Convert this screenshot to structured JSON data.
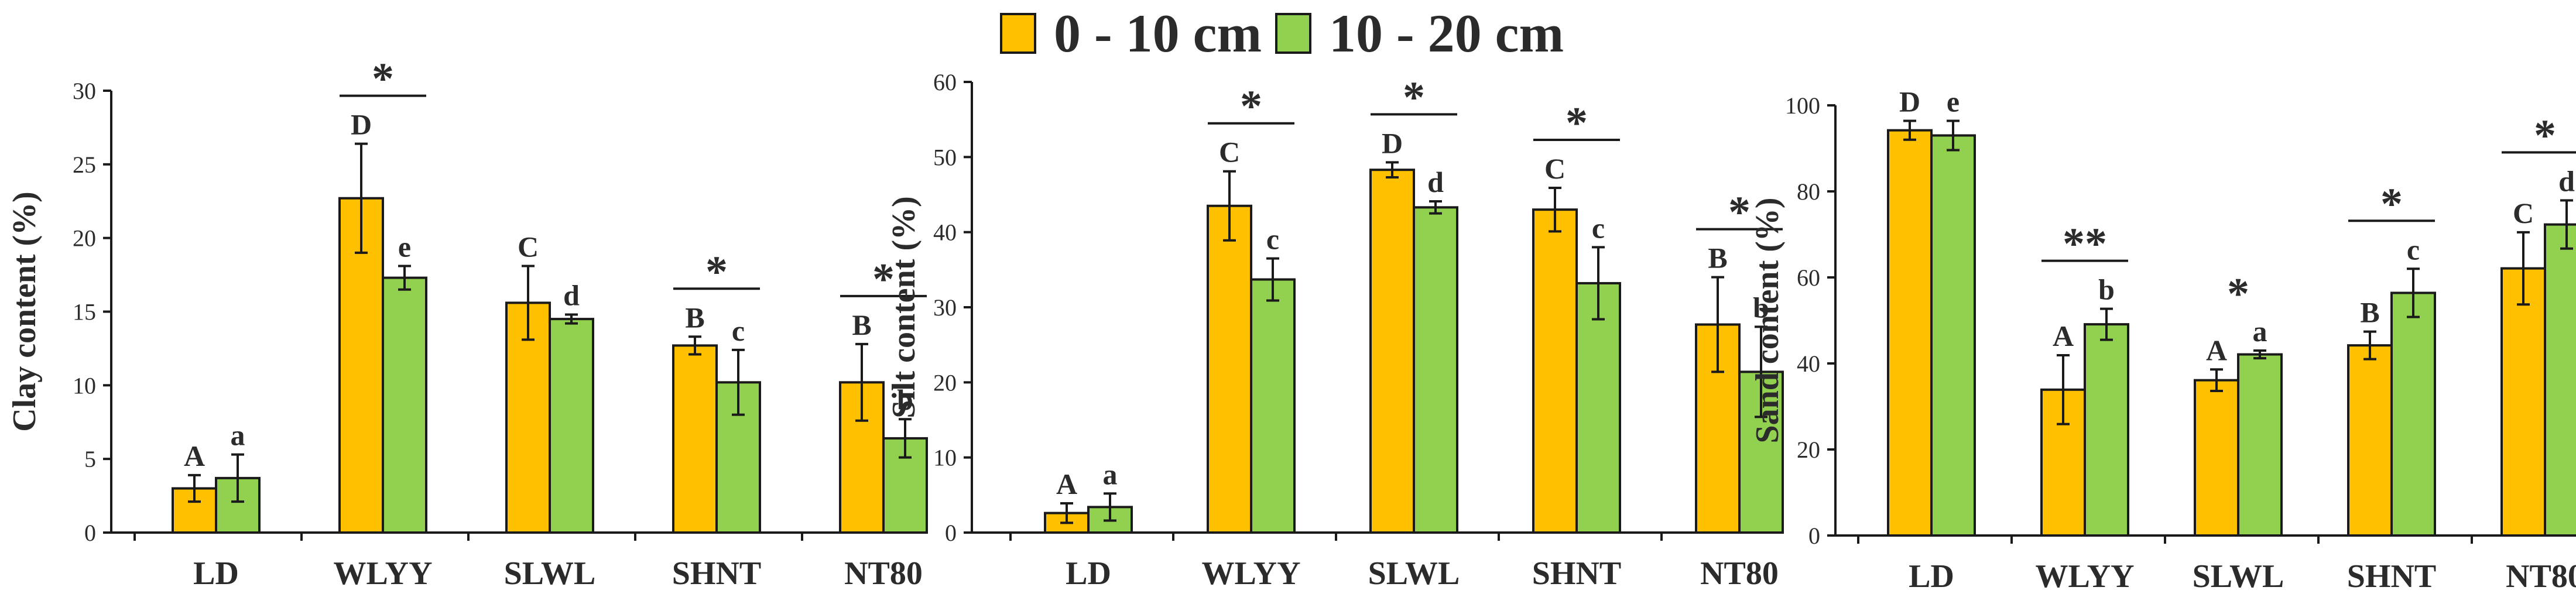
{
  "legend": {
    "series": [
      {
        "name": "0 - 10 cm",
        "color": "#FFC000"
      },
      {
        "name": "10 - 20 cm",
        "color": "#92D050"
      }
    ]
  },
  "chart_data": [
    {
      "type": "bar",
      "ylabel": "Clay content (%)",
      "ylim": [
        0,
        30
      ],
      "yticks": [
        0,
        5,
        10,
        15,
        20,
        25,
        30
      ],
      "categories": [
        "LD",
        "WLYY",
        "SLWL",
        "SHNT",
        "NT80"
      ],
      "series": [
        {
          "name": "0 - 10 cm",
          "values": [
            3.0,
            22.7,
            15.6,
            12.7,
            10.2
          ],
          "errors": [
            0.9,
            3.7,
            2.5,
            0.6,
            2.6
          ],
          "letters": [
            "A",
            "D",
            "C",
            "B",
            "B"
          ]
        },
        {
          "name": "10 - 20 cm",
          "values": [
            3.7,
            17.3,
            14.5,
            10.2,
            6.4
          ],
          "errors": [
            1.6,
            0.8,
            0.3,
            2.2,
            1.3
          ],
          "letters": [
            "a",
            "e",
            "d",
            "c",
            "b"
          ]
        }
      ],
      "significance": [
        "",
        "*",
        "",
        "*",
        "*"
      ]
    },
    {
      "type": "bar",
      "ylabel": "Silt content (%)",
      "ylim": [
        0,
        60
      ],
      "yticks": [
        0,
        10,
        20,
        30,
        40,
        50,
        60
      ],
      "categories": [
        "LD",
        "WLYY",
        "SLWL",
        "SHNT",
        "NT80"
      ],
      "series": [
        {
          "name": "0 - 10 cm",
          "values": [
            2.6,
            43.5,
            48.3,
            43.0,
            27.7
          ],
          "errors": [
            1.3,
            4.6,
            1.0,
            2.9,
            6.3
          ],
          "letters": [
            "A",
            "C",
            "D",
            "C",
            "B"
          ]
        },
        {
          "name": "10 - 20 cm",
          "values": [
            3.4,
            33.7,
            43.3,
            33.2,
            21.4
          ],
          "errors": [
            1.8,
            2.8,
            0.8,
            4.8,
            6.0
          ],
          "letters": [
            "a",
            "c",
            "d",
            "c",
            "b"
          ]
        }
      ],
      "significance": [
        "",
        "*",
        "*",
        "*",
        "*"
      ]
    },
    {
      "type": "bar",
      "ylabel": "Sand content (%)",
      "ylim": [
        0,
        100
      ],
      "yticks": [
        0,
        20,
        40,
        60,
        80,
        100
      ],
      "categories": [
        "LD",
        "WLYY",
        "SLWL",
        "SHNT",
        "NT80"
      ],
      "series": [
        {
          "name": "0 - 10 cm",
          "values": [
            94.2,
            33.9,
            36.1,
            44.2,
            62.1
          ],
          "errors": [
            2.2,
            8.0,
            2.5,
            3.2,
            8.4
          ],
          "letters": [
            "D",
            "A",
            "A",
            "B",
            "C"
          ]
        },
        {
          "name": "10 - 20 cm",
          "values": [
            93.0,
            49.1,
            42.1,
            56.4,
            72.3
          ],
          "errors": [
            3.4,
            3.6,
            0.9,
            5.6,
            5.6
          ],
          "letters": [
            "e",
            "b",
            "a",
            "c",
            "d"
          ]
        }
      ],
      "significance": [
        "",
        "**",
        "*",
        "*",
        "*"
      ]
    }
  ]
}
